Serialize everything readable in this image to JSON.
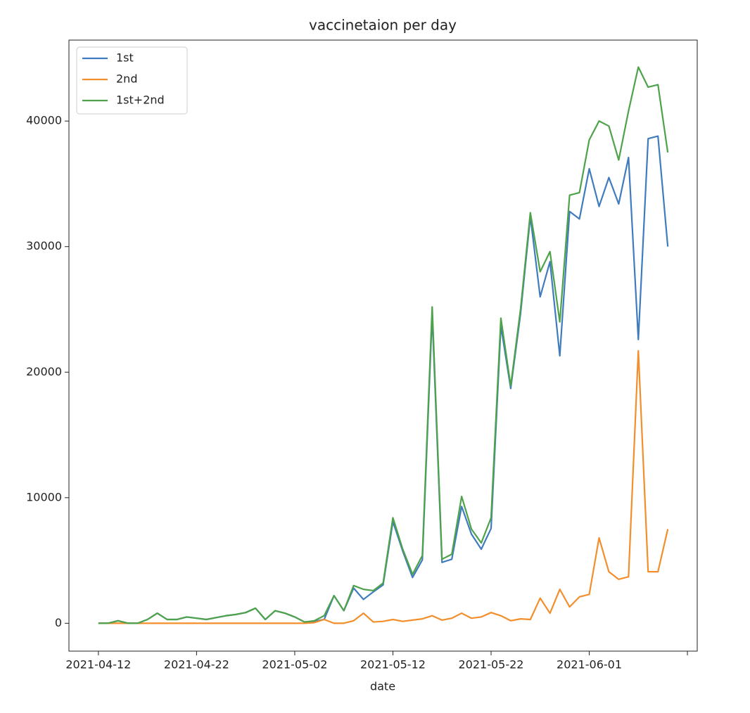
{
  "chart_data": {
    "type": "line",
    "title": "vaccinetaion per day",
    "x_label": "date",
    "x": [
      "2021-04-12",
      "2021-04-13",
      "2021-04-14",
      "2021-04-15",
      "2021-04-16",
      "2021-04-17",
      "2021-04-18",
      "2021-04-19",
      "2021-04-20",
      "2021-04-21",
      "2021-04-22",
      "2021-04-23",
      "2021-04-24",
      "2021-04-25",
      "2021-04-26",
      "2021-04-27",
      "2021-04-28",
      "2021-04-29",
      "2021-04-30",
      "2021-05-01",
      "2021-05-02",
      "2021-05-03",
      "2021-05-04",
      "2021-05-05",
      "2021-05-06",
      "2021-05-07",
      "2021-05-08",
      "2021-05-09",
      "2021-05-10",
      "2021-05-11",
      "2021-05-12",
      "2021-05-13",
      "2021-05-14",
      "2021-05-15",
      "2021-05-16",
      "2021-05-17",
      "2021-05-18",
      "2021-05-19",
      "2021-05-20",
      "2021-05-21",
      "2021-05-22",
      "2021-05-23",
      "2021-05-24",
      "2021-05-25",
      "2021-05-26",
      "2021-05-27",
      "2021-05-28",
      "2021-05-29",
      "2021-05-30",
      "2021-05-31",
      "2021-06-01",
      "2021-06-02",
      "2021-06-03",
      "2021-06-04",
      "2021-06-05",
      "2021-06-06",
      "2021-06-07",
      "2021-06-08",
      "2021-06-09"
    ],
    "series": [
      {
        "name": "1st",
        "color": "#3f7bbf",
        "values": [
          0,
          0,
          200,
          0,
          0,
          300,
          800,
          300,
          300,
          500,
          400,
          300,
          450,
          600,
          700,
          850,
          1200,
          300,
          1000,
          800,
          500,
          100,
          150,
          300,
          2200,
          1000,
          2800,
          1900,
          2500,
          3050,
          8100,
          5750,
          3650,
          5050,
          24600,
          4850,
          5100,
          9300,
          7100,
          5900,
          7550,
          23700,
          18700,
          24650,
          32400,
          26000,
          28800,
          21300,
          32800,
          32200,
          36200,
          33200,
          35500,
          33400,
          37100,
          22600,
          38600,
          38800,
          30000
        ]
      },
      {
        "name": "2nd",
        "color": "#f28e2b",
        "values": [
          0,
          0,
          0,
          0,
          0,
          0,
          0,
          0,
          0,
          0,
          0,
          0,
          0,
          0,
          0,
          0,
          0,
          0,
          0,
          0,
          0,
          0,
          50,
          300,
          0,
          0,
          200,
          800,
          100,
          150,
          300,
          150,
          250,
          350,
          600,
          250,
          400,
          800,
          400,
          500,
          850,
          600,
          200,
          350,
          300,
          2000,
          800,
          2700,
          1300,
          2100,
          2300,
          6800,
          4100,
          3500,
          3700,
          21700,
          4100,
          4100,
          7500
        ]
      },
      {
        "name": "1st+2nd",
        "color": "#4ea24a",
        "values": [
          0,
          0,
          200,
          0,
          0,
          300,
          800,
          300,
          300,
          500,
          400,
          300,
          450,
          600,
          700,
          850,
          1200,
          300,
          1000,
          800,
          500,
          100,
          200,
          600,
          2200,
          1000,
          3000,
          2700,
          2600,
          3200,
          8400,
          5900,
          3900,
          5400,
          25200,
          5100,
          5500,
          10100,
          7500,
          6400,
          8400,
          24300,
          18900,
          25000,
          32700,
          28000,
          29600,
          24000,
          34100,
          34300,
          38500,
          40000,
          39600,
          36900,
          40800,
          44300,
          42700,
          42900,
          37500
        ]
      }
    ],
    "xlim": [
      "2021-04-09",
      "2021-06-12"
    ],
    "xticks": [
      "2021-04-12",
      "2021-04-22",
      "2021-05-02",
      "2021-05-12",
      "2021-05-22",
      "2021-06-01",
      {
        "value": "2021-06-11",
        "label": null
      }
    ],
    "ylim": [
      -2220,
      46450
    ],
    "yticks": [
      0,
      10000,
      20000,
      30000,
      40000
    ],
    "legend": "upper left"
  }
}
